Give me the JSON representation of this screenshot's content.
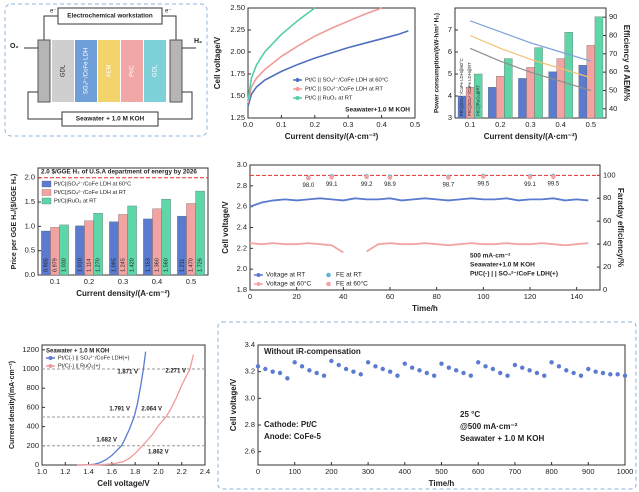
{
  "diagram": {
    "workstation": "Electrochemical workstation",
    "electron_left": "e⁻",
    "electron_right": "e⁻",
    "outlet_left": "O₂",
    "outlet_right": "H₂",
    "layers": [
      "GDL",
      "SO₄²⁻/CoFe LDH",
      "AEM",
      "Pt/C",
      "GDL"
    ],
    "electrolyte": "Seawater + 1.0 M KOH"
  },
  "chart_data": [
    {
      "type": "line",
      "x_label": "Current density/(A·cm⁻²)",
      "y_label": "Cell voltage/V",
      "xlim": [
        0,
        0.5
      ],
      "xticks": [
        {
          "value": 0,
          "label": "0.0"
        },
        0.1,
        0.2,
        0.3,
        0.4,
        0.5
      ],
      "ylim": [
        1.25,
        2.5
      ],
      "yticks": [
        1.25,
        {
          "value": 1.5,
          "label": "1.50"
        },
        1.75,
        {
          "value": 2,
          "label": "2.00"
        },
        2.25,
        {
          "value": 2.5,
          "label": "2.50"
        }
      ],
      "legend": "lower right",
      "annotations": [
        "Seawater+1.0 M KOH"
      ],
      "series": [
        {
          "name": "Pt/C || SO₄²⁻/CoFe LDH at 60°C",
          "color": "#4f6fbf",
          "style": "line",
          "x": [
            0,
            0.01,
            0.025,
            0.05,
            0.1,
            0.15,
            0.2,
            0.25,
            0.3,
            0.35,
            0.4,
            0.45,
            0.48
          ],
          "values": [
            1.38,
            1.52,
            1.6,
            1.68,
            1.78,
            1.86,
            1.93,
            1.99,
            2.05,
            2.1,
            2.15,
            2.2,
            2.24
          ]
        },
        {
          "name": "Pt/C || SO₄²⁻/CoFe LDH at RT",
          "color": "#f09a9a",
          "style": "line",
          "x": [
            0,
            0.01,
            0.025,
            0.05,
            0.1,
            0.15,
            0.2,
            0.25,
            0.3,
            0.35,
            0.4
          ],
          "values": [
            1.42,
            1.6,
            1.7,
            1.8,
            1.95,
            2.07,
            2.18,
            2.27,
            2.35,
            2.43,
            2.5
          ]
        },
        {
          "name": "Pt/C || RuO₂ at RT",
          "color": "#52cfa0",
          "style": "line",
          "x": [
            0,
            0.01,
            0.025,
            0.05,
            0.1,
            0.15,
            0.2
          ],
          "values": [
            1.45,
            1.7,
            1.85,
            2,
            2.2,
            2.36,
            2.5
          ]
        }
      ]
    },
    {
      "type": "bar",
      "categories": [
        "0.1",
        "0.2",
        "0.3",
        "0.4",
        "0.5"
      ],
      "x_label": "Current density/(A·cm⁻²)",
      "y_label": "Power consumption/(kW·h/m³ H₂)",
      "y2_label": "Efficiency of AEM/%",
      "ylim": [
        3,
        8
      ],
      "yticks": [
        3,
        4,
        5,
        6,
        7
      ],
      "y2lim": [
        35,
        95
      ],
      "y2ticks": [
        40,
        50,
        60,
        70,
        80,
        90
      ],
      "series": [
        {
          "name": "Pt/C||SO₄²⁻/CoFe LDH@60°C",
          "color": "#5b7bd0",
          "style": "bar",
          "values": [
            4,
            4.4,
            4.8,
            5.1,
            5.4
          ]
        },
        {
          "name": "Pt/C||SO₄²⁻/CoFe LDH@RT",
          "color": "#f4a3a3",
          "style": "bar",
          "values": [
            4.4,
            4.9,
            5.3,
            5.7,
            6.3
          ]
        },
        {
          "name": "Pt/C||RuO₂@RT",
          "color": "#5fd6a8",
          "style": "bar",
          "values": [
            5,
            5.7,
            6.2,
            6.9,
            7.6
          ]
        },
        {
          "color": "#7da0d8",
          "style": "line",
          "axis": "y2",
          "values": [
            88,
            82,
            76,
            71,
            66
          ]
        },
        {
          "color": "#f2c078",
          "style": "line",
          "axis": "y2",
          "values": [
            80,
            73,
            67,
            62,
            57
          ]
        },
        {
          "color": "#8e8e8e",
          "style": "line",
          "axis": "y2",
          "values": [
            73,
            66,
            60,
            55,
            50
          ]
        }
      ]
    },
    {
      "type": "bar",
      "categories": [
        "0.1",
        "0.2",
        "0.3",
        "0.4",
        "0.5"
      ],
      "x_label": "Current density/(A·cm⁻²)",
      "y_label": "Price per GGE H₂/($/GGE H₂)",
      "ylim": [
        0,
        2.2
      ],
      "yticks": [
        {
          "value": 0,
          "label": "0.0"
        },
        0.5,
        {
          "value": 1,
          "label": "1.0"
        },
        1.5,
        {
          "value": 2,
          "label": "2.0"
        }
      ],
      "legend": "upper left",
      "reference_line": {
        "value": 2,
        "label": "2.0 $/GGE H₂ of U.S.A department of energy by 2026"
      },
      "series": [
        {
          "name": "Pt/C||SO₄²⁻/CoFe LDH at 60°C",
          "color": "#5b7bd0",
          "style": "bar",
          "values": [
            0.905,
            1.01,
            1.095,
            1.153,
            1.211
          ],
          "value_labels": [
            "0.905",
            "1.010",
            "1.095",
            "1.153",
            "1.211"
          ]
        },
        {
          "name": "Pt/C||SO₄²⁻/CoFe LDH at RT",
          "color": "#f4a3a3",
          "style": "bar",
          "values": [
            0.979,
            1.114,
            1.245,
            1.36,
            1.47
          ],
          "value_labels": [
            "0.979",
            "1.114",
            "1.245",
            "1.360",
            "1.470"
          ]
        },
        {
          "name": "Pt/C||RuO₂ at RT",
          "color": "#5fd6a8",
          "style": "bar",
          "values": [
            1.03,
            1.27,
            1.42,
            1.56,
            1.726
          ],
          "value_labels": [
            "1.030",
            "1.270",
            "1.420",
            "1.560",
            "1.726"
          ]
        }
      ]
    },
    {
      "type": "line",
      "x_label": "Time/h",
      "y_label": "Cell voltage/V",
      "y2_label": "Faraday efficiency/%",
      "xlim": [
        0,
        150
      ],
      "xticks": [
        0,
        20,
        40,
        60,
        80,
        100,
        120,
        140
      ],
      "ylim": [
        1.8,
        3
      ],
      "yticks": [
        1.8,
        {
          "value": 2,
          "label": "2.0"
        },
        2.2,
        2.4,
        2.6,
        2.8,
        {
          "value": 3,
          "label": "3.0"
        }
      ],
      "y2lim": [
        0,
        109
      ],
      "y2ticks": [
        0,
        20,
        40,
        60,
        80,
        100
      ],
      "legend": "lower left",
      "reference_line": {
        "value": 100,
        "axis": "y2"
      },
      "annotations": [
        "500 mA·cm⁻²",
        "Seawater+1.0 M KOH",
        "Pt/C(-) | | SO₄²⁻/CoFe LDH(+)"
      ],
      "series": [
        {
          "name": "Voltage at RT",
          "color": "#5b7bd0",
          "style": "line",
          "x": [
            0,
            5,
            10,
            15,
            20,
            25,
            30,
            35,
            40,
            45,
            50,
            55,
            60,
            65,
            70,
            75,
            80,
            85,
            90,
            95,
            100,
            105,
            110,
            115,
            120,
            125,
            130,
            135,
            140,
            145
          ],
          "values": [
            2.6,
            2.64,
            2.66,
            2.67,
            2.66,
            2.67,
            2.68,
            2.67,
            2.66,
            2.68,
            2.67,
            2.67,
            2.68,
            2.66,
            2.67,
            2.68,
            2.67,
            2.66,
            2.67,
            2.68,
            2.67,
            2.67,
            2.68,
            2.66,
            2.67,
            2.67,
            2.68,
            2.66,
            2.67,
            2.66
          ]
        },
        {
          "name": "Voltage at 60°C",
          "color": "#f4a3a3",
          "style": "line",
          "x": [
            0,
            5,
            10,
            15,
            20,
            25,
            30,
            35,
            40,
            45,
            50,
            55,
            60,
            65,
            70,
            75,
            80,
            85,
            90,
            95,
            100,
            105,
            110,
            115,
            120,
            125,
            130,
            135,
            140,
            145
          ],
          "values": [
            2.25,
            2.24,
            2.25,
            2.24,
            2.24,
            2.25,
            2.24,
            2.23,
            2.16,
            null,
            2.17,
            2.24,
            2.25,
            2.24,
            2.24,
            2.25,
            2.24,
            2.23,
            2.24,
            2.25,
            2.24,
            2.24,
            2.25,
            2.24,
            2.24,
            2.25,
            2.24,
            2.23,
            2.24,
            2.25
          ]
        },
        {
          "name": "FE at RT",
          "color": "#5fb6d4",
          "style": "points",
          "axis": "y2",
          "x": [
            25,
            35,
            50,
            60,
            85,
            100,
            120,
            130
          ],
          "values": [
            98,
            99.1,
            99.2,
            98.9,
            98.7,
            99.5,
            99.1,
            99.5
          ],
          "value_labels": [
            "98.0",
            "99.1",
            "99.2",
            "98.9",
            "98.7",
            "99.5",
            "99.1",
            "99.5"
          ]
        },
        {
          "name": "FE at 60°C",
          "color": "#f4a3a3",
          "style": "points",
          "axis": "y2",
          "x": [
            25,
            35,
            50,
            60,
            85,
            100,
            120,
            130
          ],
          "values": [
            97.5,
            98.2,
            98.6,
            98,
            97.9,
            98.8,
            98.4,
            98.6
          ]
        }
      ]
    },
    {
      "type": "line",
      "x_label": "Cell voltage/V",
      "y_label": "Current density/(mA·cm⁻²)",
      "xlim": [
        1,
        2.4
      ],
      "xticks": [
        {
          "value": 1,
          "label": "1.0"
        },
        1.2,
        1.4,
        1.6,
        1.8,
        {
          "value": 2,
          "label": "2.0"
        },
        2.2,
        2.4
      ],
      "ylim": [
        0,
        1250
      ],
      "yticks": [
        0,
        200,
        400,
        600,
        800,
        1000,
        1200
      ],
      "legend": "upper left",
      "hlines": [
        200,
        500,
        1000
      ],
      "annotations": [
        "Seawater + 1.0 M KOH",
        "1.871 V",
        "1.791 V",
        "1.682 V",
        "2.271 V",
        "2.064 V",
        "1.862 V"
      ],
      "series": [
        {
          "name": "Pt/C(-) || SO₄²⁻/CoFe LDH(+)",
          "color": "#5b7bd0",
          "style": "line",
          "x": [
            1.3,
            1.4,
            1.45,
            1.5,
            1.55,
            1.6,
            1.65,
            1.682,
            1.7,
            1.75,
            1.791,
            1.82,
            1.85,
            1.871,
            1.89
          ],
          "values": [
            0,
            2,
            8,
            25,
            55,
            100,
            160,
            200,
            240,
            370,
            500,
            640,
            840,
            1000,
            1180
          ]
        },
        {
          "name": "Pt/C(-) || RuO₂(+)",
          "color": "#f09a9a",
          "style": "line",
          "x": [
            1.3,
            1.5,
            1.6,
            1.7,
            1.75,
            1.8,
            1.862,
            1.9,
            1.95,
            2,
            2.064,
            2.1,
            2.15,
            2.2,
            2.271,
            2.3
          ],
          "values": [
            0,
            3,
            10,
            35,
            70,
            120,
            200,
            250,
            320,
            410,
            500,
            570,
            690,
            830,
            1000,
            1150
          ]
        }
      ]
    },
    {
      "type": "line",
      "x_label": "Time/h",
      "y_label": "Cell voltage/V",
      "xlim": [
        0,
        1000
      ],
      "xticks": [
        0,
        100,
        200,
        300,
        400,
        500,
        600,
        700,
        800,
        900,
        1000
      ],
      "ylim": [
        2.5,
        3.4
      ],
      "yticks": [
        2.6,
        2.8,
        {
          "value": 3,
          "label": "3.0"
        },
        3.2,
        3.4
      ],
      "annotations": [
        "Without iR-compensation",
        "Cathode: Pt/C",
        "Anode: CoFe-5",
        "25 °C",
        "@500 mA·cm⁻²",
        "Seawater + 1.0 M KOH"
      ],
      "series": [
        {
          "color": "#5b7bd0",
          "style": "points",
          "x": [
            0,
            20,
            40,
            60,
            80,
            100,
            120,
            140,
            160,
            180,
            200,
            220,
            240,
            260,
            280,
            300,
            320,
            340,
            360,
            380,
            400,
            420,
            440,
            460,
            480,
            500,
            520,
            540,
            560,
            580,
            600,
            620,
            640,
            660,
            680,
            700,
            720,
            740,
            760,
            780,
            800,
            820,
            840,
            860,
            880,
            900,
            920,
            940,
            960,
            980,
            1000
          ],
          "values": [
            3.24,
            3.22,
            3.2,
            3.19,
            3.15,
            3.27,
            3.24,
            3.21,
            3.19,
            3.17,
            3.28,
            3.25,
            3.22,
            3.2,
            3.18,
            3.27,
            3.24,
            3.22,
            3.2,
            3.17,
            3.26,
            3.23,
            3.21,
            3.19,
            3.17,
            3.26,
            3.23,
            3.21,
            3.19,
            3.17,
            3.27,
            3.24,
            3.22,
            3.19,
            3.17,
            3.25,
            3.23,
            3.21,
            3.19,
            3.17,
            3.27,
            3.24,
            3.21,
            3.19,
            3.17,
            3.22,
            3.2,
            3.19,
            3.18,
            3.18,
            3.17
          ]
        }
      ]
    }
  ]
}
